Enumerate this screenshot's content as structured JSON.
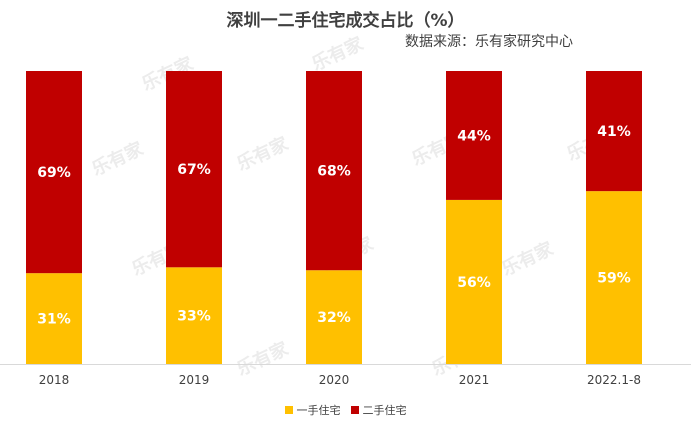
{
  "chart_data": {
    "type": "bar",
    "stacked": true,
    "title": "深圳一二手住宅成交占比（%）",
    "subtitle": "数据来源：乐有家研究中心",
    "categories": [
      "2018",
      "2019",
      "2020",
      "2021",
      "2022.1-8"
    ],
    "series": [
      {
        "name": "一手住宅",
        "color": "#FFC000",
        "values": [
          31,
          33,
          32,
          56,
          59
        ]
      },
      {
        "name": "二手住宅",
        "color": "#C00000",
        "values": [
          69,
          67,
          68,
          44,
          41
        ]
      }
    ],
    "ylim": [
      0,
      100
    ],
    "unit": "%",
    "grid": false,
    "legend": "bottom"
  },
  "watermark": "乐有家"
}
